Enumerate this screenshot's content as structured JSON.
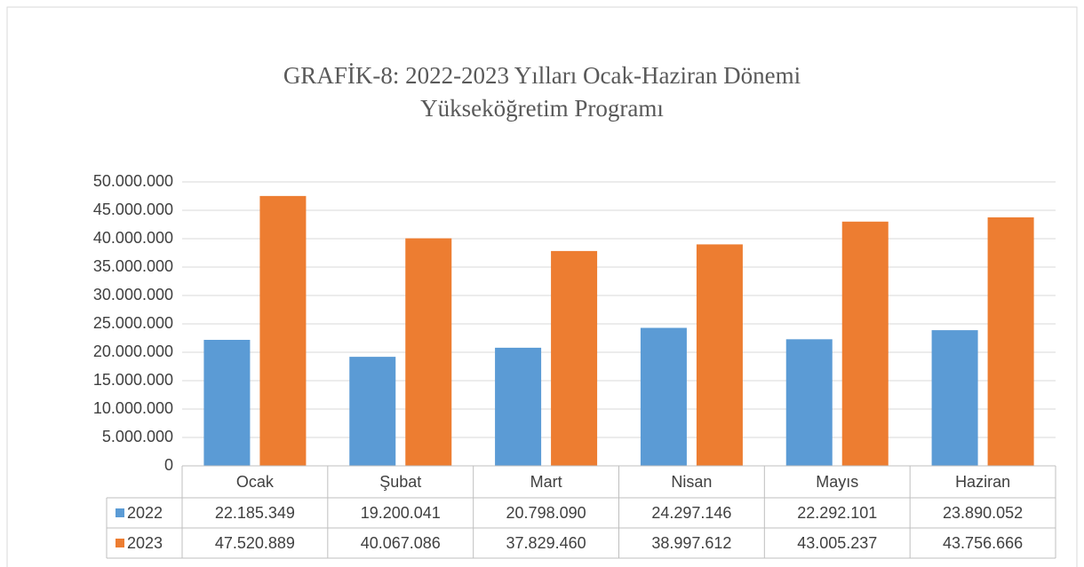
{
  "chart_data": {
    "type": "bar",
    "title": [
      "GRAFİK-8: 2022-2023 Yılları Ocak-Haziran Dönemi",
      "Yükseköğretim Programı"
    ],
    "categories": [
      "Ocak",
      "Şubat",
      "Mart",
      "Nisan",
      "Mayıs",
      "Haziran"
    ],
    "series": [
      {
        "name": "2022",
        "color": "#5b9bd5",
        "values": [
          22185349,
          19200041,
          20798090,
          24297146,
          22292101,
          23890052
        ],
        "value_labels": [
          "22.185.349",
          "19.200.041",
          "20.798.090",
          "24.297.146",
          "22.292.101",
          "23.890.052"
        ]
      },
      {
        "name": "2023",
        "color": "#ed7d31",
        "values": [
          47520889,
          40067086,
          37829460,
          38997612,
          43005237,
          43756666
        ],
        "value_labels": [
          "47.520.889",
          "40.067.086",
          "37.829.460",
          "38.997.612",
          "43.005.237",
          "43.756.666"
        ]
      }
    ],
    "ylim": [
      0,
      50000000
    ],
    "yticks": [
      0,
      {
        "value": 5000000,
        "label": "5.000.000"
      },
      {
        "value": 10000000,
        "label": "10.000.000"
      },
      {
        "value": 15000000,
        "label": "15.000.000"
      },
      {
        "value": 20000000,
        "label": "20.000.000"
      },
      {
        "value": 25000000,
        "label": "25.000.000"
      },
      {
        "value": 30000000,
        "label": "30.000.000"
      },
      {
        "value": 35000000,
        "label": "35.000.000"
      },
      {
        "value": 40000000,
        "label": "40.000.000"
      },
      {
        "value": 45000000,
        "label": "45.000.000"
      },
      {
        "value": 50000000,
        "label": "50.000.000"
      }
    ],
    "grid": true
  }
}
